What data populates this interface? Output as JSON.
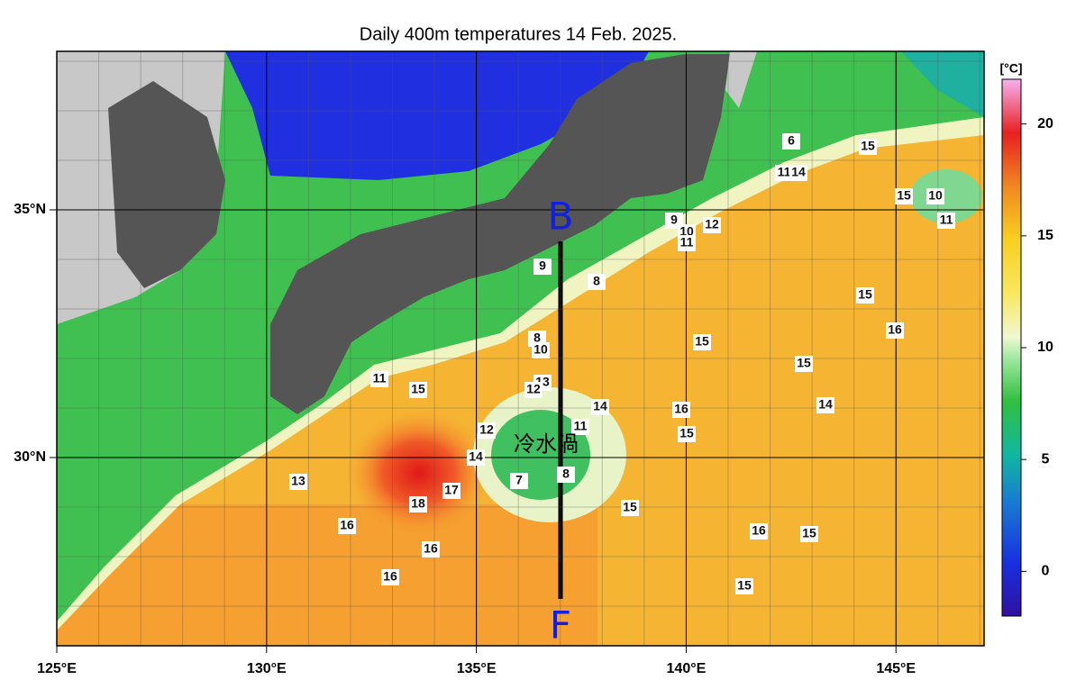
{
  "title": "Daily 400m temperatures 14 Feb. 2025.",
  "map": {
    "lonlim": [
      125,
      147.1
    ],
    "latlim": [
      26.2,
      38.2
    ],
    "lonticks": [
      {
        "value": 125,
        "label": "125°E"
      },
      {
        "value": 130,
        "label": "130°E"
      },
      {
        "value": 135,
        "label": "135°E"
      },
      {
        "value": 140,
        "label": "140°E"
      },
      {
        "value": 145,
        "label": "145°E"
      }
    ],
    "latticks": [
      {
        "value": 30,
        "label": "30°N"
      },
      {
        "value": 35,
        "label": "35°N"
      }
    ],
    "annotations": [
      "B",
      "F",
      "冷水渦"
    ],
    "contour_labels": [
      6,
      11,
      14,
      15,
      15,
      10,
      11,
      9,
      10,
      12,
      11,
      9,
      8,
      15,
      16,
      15,
      15,
      14,
      16,
      15,
      8,
      10,
      13,
      12,
      11,
      15,
      14,
      11,
      12,
      14,
      8,
      7,
      13,
      17,
      18,
      15,
      16,
      15,
      16,
      16,
      16,
      15
    ]
  },
  "colorbar": {
    "unit": "[°C]",
    "lim": [
      -2,
      22
    ],
    "ticks": [
      0,
      5,
      10,
      15,
      20
    ]
  }
}
